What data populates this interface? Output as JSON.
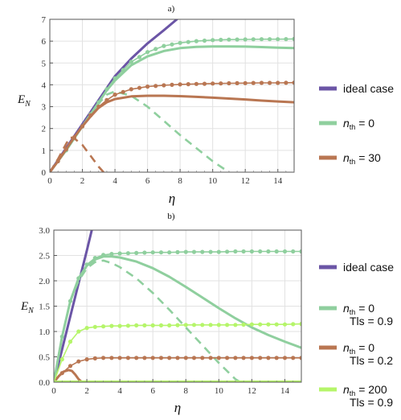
{
  "chart_data": [
    {
      "panel_label": "a)",
      "type": "line",
      "xlabel": "η",
      "ylabel_main": "E",
      "ylabel_sub": "N",
      "xlim": [
        0,
        15
      ],
      "ylim": [
        0,
        7
      ],
      "xticks": [
        "0",
        "2",
        "4",
        "6",
        "8",
        "10",
        "12",
        "14"
      ],
      "yticks": [
        "0",
        "1",
        "2",
        "3",
        "4",
        "5",
        "6",
        "7"
      ],
      "grid": true,
      "legend": [
        {
          "label_pre": "ideal case",
          "label_sub": "",
          "label_post": "",
          "color": "#6b55a6"
        },
        {
          "label_pre": "n",
          "label_sub": "th",
          "label_post": " = 0",
          "color": "#8fcf9e"
        },
        {
          "label_pre": "n",
          "label_sub": "th",
          "label_post": " = 30",
          "color": "#b97652"
        }
      ],
      "series": [
        {
          "name": "ideal case",
          "style": "solid",
          "color": "#6b55a6",
          "x": [
            0,
            0.5,
            1,
            1.5,
            2,
            2.5,
            3,
            3.5,
            4,
            5,
            6,
            7,
            7.8
          ],
          "y": [
            0,
            0.55,
            1.1,
            1.65,
            2.2,
            2.75,
            3.3,
            3.85,
            4.4,
            5.2,
            5.9,
            6.5,
            7.0
          ]
        },
        {
          "name": "n_th = 0 (solid)",
          "style": "solid",
          "color": "#8fcf9e",
          "x": [
            0,
            0.5,
            1,
            1.5,
            2,
            2.5,
            3,
            3.5,
            4,
            5,
            6,
            7,
            8,
            9,
            10,
            11,
            12,
            13,
            14,
            15
          ],
          "y": [
            0,
            0.5,
            1.0,
            1.55,
            2.1,
            2.65,
            3.2,
            3.75,
            4.2,
            4.9,
            5.3,
            5.55,
            5.68,
            5.74,
            5.76,
            5.76,
            5.75,
            5.73,
            5.7,
            5.68
          ]
        },
        {
          "name": "n_th = 0 (dashed)",
          "style": "dashed",
          "color": "#8fcf9e",
          "x": [
            0,
            0.5,
            1,
            1.5,
            2,
            2.5,
            3,
            3.5,
            4,
            5,
            6,
            7,
            8,
            9,
            10,
            11
          ],
          "y": [
            0,
            0.5,
            1.0,
            1.55,
            2.1,
            2.65,
            3.15,
            3.55,
            3.7,
            3.5,
            3.0,
            2.35,
            1.7,
            1.1,
            0.5,
            0.0
          ]
        },
        {
          "name": "n_th = 0 (dotted)",
          "style": "dotted",
          "color": "#8fcf9e",
          "x": [
            0,
            0.5,
            1,
            1.5,
            2,
            2.5,
            3,
            3.5,
            4,
            5,
            6,
            7,
            8,
            9,
            10,
            11,
            12,
            13,
            14,
            15
          ],
          "y": [
            0,
            0.5,
            1.0,
            1.55,
            2.1,
            2.65,
            3.2,
            3.8,
            4.3,
            5.05,
            5.5,
            5.78,
            5.92,
            6.0,
            6.05,
            6.07,
            6.08,
            6.09,
            6.09,
            6.1
          ]
        },
        {
          "name": "n_th = 30 (solid)",
          "style": "solid",
          "color": "#b97652",
          "x": [
            0,
            0.5,
            1,
            1.5,
            2,
            2.5,
            3,
            3.5,
            4,
            5,
            6,
            7,
            8,
            9,
            10,
            11,
            12,
            13,
            14,
            15
          ],
          "y": [
            0,
            0.5,
            1.05,
            1.6,
            2.1,
            2.55,
            2.95,
            3.2,
            3.35,
            3.47,
            3.5,
            3.5,
            3.48,
            3.45,
            3.41,
            3.37,
            3.33,
            3.28,
            3.24,
            3.2
          ]
        },
        {
          "name": "n_th = 30 (dashed)",
          "style": "dashed",
          "color": "#b97652",
          "x": [
            0,
            0.5,
            1,
            1.25,
            1.5,
            2,
            2.5,
            3,
            3.3
          ],
          "y": [
            0,
            0.6,
            1.3,
            1.6,
            1.55,
            1.25,
            0.75,
            0.25,
            0.0
          ]
        },
        {
          "name": "n_th = 30 (dotted)",
          "style": "dotted",
          "color": "#b97652",
          "x": [
            0,
            0.5,
            1,
            1.5,
            2,
            2.5,
            3,
            3.5,
            4,
            5,
            6,
            7,
            8,
            9,
            10,
            11,
            12,
            13,
            14,
            15
          ],
          "y": [
            0,
            0.5,
            1.05,
            1.6,
            2.1,
            2.6,
            3.0,
            3.3,
            3.55,
            3.8,
            3.92,
            3.98,
            4.02,
            4.04,
            4.06,
            4.07,
            4.08,
            4.09,
            4.09,
            4.1
          ]
        }
      ]
    },
    {
      "panel_label": "b)",
      "type": "line",
      "xlabel": "η",
      "ylabel_main": "E",
      "ylabel_sub": "N",
      "xlim": [
        0,
        15
      ],
      "ylim": [
        0,
        3
      ],
      "xticks": [
        "0",
        "2",
        "4",
        "6",
        "8",
        "10",
        "12",
        "14"
      ],
      "yticks": [
        "0.0",
        "0.5",
        "1.0",
        "1.5",
        "2.0",
        "2.5",
        "3.0"
      ],
      "grid": true,
      "legend": [
        {
          "label_pre": "ideal case",
          "label_sub": "",
          "label_post": "",
          "line2": "",
          "color": "#6b55a6"
        },
        {
          "label_pre": "n",
          "label_sub": "th",
          "label_post": " = 0",
          "line2": "Tls = 0.9",
          "color": "#8fcf9e"
        },
        {
          "label_pre": "n",
          "label_sub": "th",
          "label_post": " = 0",
          "line2": "Tls = 0.2",
          "color": "#b97652"
        },
        {
          "label_pre": "n",
          "label_sub": "th",
          "label_post": " = 200",
          "line2": "Tls = 0.9",
          "color": "#b5f56a"
        }
      ],
      "series": [
        {
          "name": "ideal case",
          "style": "solid",
          "color": "#6b55a6",
          "x": [
            0,
            0.5,
            1,
            1.5,
            2,
            2.3
          ],
          "y": [
            0,
            0.65,
            1.3,
            1.95,
            2.6,
            3.0
          ]
        },
        {
          "name": "n_th = 0, Tls = 0.9 (solid)",
          "style": "solid",
          "color": "#8fcf9e",
          "x": [
            0,
            0.5,
            1,
            1.5,
            2,
            2.5,
            3,
            3.5,
            4,
            5,
            6,
            7,
            8,
            9,
            10,
            11,
            12,
            13,
            14,
            15
          ],
          "y": [
            0,
            0.9,
            1.6,
            2.05,
            2.3,
            2.42,
            2.48,
            2.48,
            2.46,
            2.38,
            2.25,
            2.08,
            1.88,
            1.67,
            1.46,
            1.26,
            1.08,
            0.93,
            0.8,
            0.68
          ]
        },
        {
          "name": "n_th = 0, Tls = 0.9 (dashed)",
          "style": "dashed",
          "color": "#8fcf9e",
          "x": [
            0,
            0.5,
            1,
            1.5,
            2,
            2.5,
            3,
            3.5,
            4,
            5,
            6,
            7,
            8,
            9,
            10,
            11,
            11.3
          ],
          "y": [
            0,
            0.9,
            1.6,
            2.0,
            2.25,
            2.37,
            2.4,
            2.35,
            2.27,
            2.05,
            1.76,
            1.43,
            1.08,
            0.73,
            0.38,
            0.06,
            0.0
          ]
        },
        {
          "name": "n_th = 0, Tls = 0.9 (dotted)",
          "style": "dotted",
          "color": "#8fcf9e",
          "x": [
            0,
            0.5,
            1,
            1.5,
            2,
            2.5,
            3,
            3.5,
            4,
            5,
            6,
            7,
            8,
            9,
            10,
            11,
            12,
            13,
            14,
            15
          ],
          "y": [
            0,
            0.9,
            1.6,
            2.05,
            2.32,
            2.45,
            2.51,
            2.53,
            2.54,
            2.55,
            2.56,
            2.56,
            2.57,
            2.57,
            2.57,
            2.58,
            2.58,
            2.58,
            2.58,
            2.58
          ]
        },
        {
          "name": "n_th = 0, Tls = 0.2 (solid)",
          "style": "solid",
          "color": "#b97652",
          "x": [
            0,
            0.3,
            0.6,
            0.9,
            1.1,
            1.3,
            1.5,
            1.7
          ],
          "y": [
            0,
            0.12,
            0.21,
            0.24,
            0.22,
            0.15,
            0.06,
            0.0
          ]
        },
        {
          "name": "n_th = 0, Tls = 0.2 (dotted)",
          "style": "dotted",
          "color": "#b97652",
          "x": [
            0,
            0.5,
            1,
            1.5,
            2,
            2.5,
            3,
            3.5,
            4,
            5,
            6,
            7,
            8,
            9,
            10,
            11,
            12,
            13,
            14,
            15
          ],
          "y": [
            0,
            0.18,
            0.32,
            0.41,
            0.45,
            0.47,
            0.48,
            0.48,
            0.48,
            0.48,
            0.48,
            0.48,
            0.48,
            0.48,
            0.48,
            0.48,
            0.48,
            0.48,
            0.48,
            0.48
          ]
        },
        {
          "name": "n_th = 200, Tls = 0.9 (solid)",
          "style": "solid",
          "color": "#b5f56a",
          "x": [
            0,
            15
          ],
          "y": [
            0.01,
            0.01
          ]
        },
        {
          "name": "n_th = 200, Tls = 0.9 (dotted)",
          "style": "dotted",
          "color": "#b5f56a",
          "x": [
            0,
            0.5,
            1,
            1.5,
            2,
            2.5,
            3,
            3.5,
            4,
            5,
            6,
            7,
            8,
            9,
            10,
            11,
            12,
            13,
            14,
            15
          ],
          "y": [
            0,
            0.45,
            0.8,
            1.0,
            1.07,
            1.09,
            1.1,
            1.11,
            1.11,
            1.12,
            1.12,
            1.12,
            1.13,
            1.13,
            1.13,
            1.13,
            1.14,
            1.14,
            1.14,
            1.15
          ]
        }
      ]
    }
  ]
}
